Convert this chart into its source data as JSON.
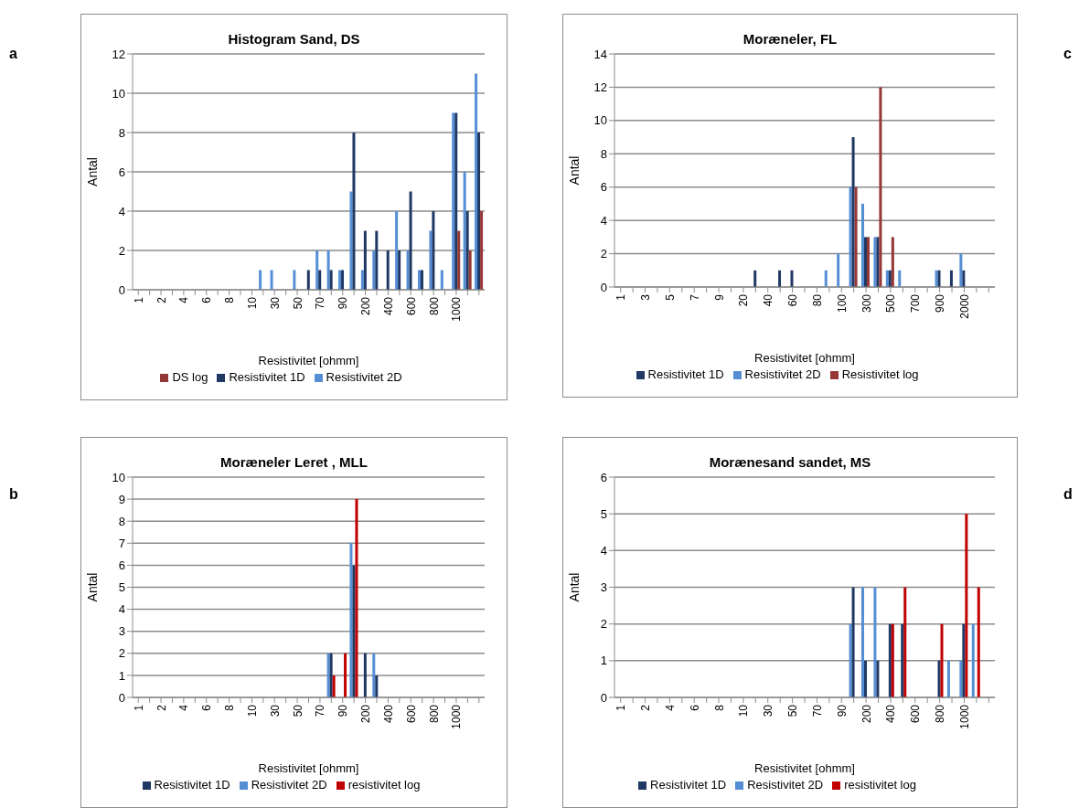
{
  "chart_data": [
    {
      "type": "bar",
      "title": "Histogram Sand,  DS",
      "xlabel": "Resistivitet [ohmm]",
      "ylabel": "Antal",
      "annotations": [
        "a"
      ],
      "grid": "y",
      "legend": "bottom",
      "ylim": [
        0,
        12
      ],
      "yticks": [
        0,
        2,
        4,
        6,
        8,
        10,
        12
      ],
      "categories": [
        "1",
        null,
        "2",
        null,
        "4",
        null,
        "6",
        null,
        "8",
        null,
        "10",
        null,
        "30",
        null,
        "50",
        null,
        "70",
        null,
        "90",
        null,
        "200",
        null,
        "400",
        null,
        "600",
        null,
        "800",
        null,
        "1000",
        null,
        null
      ],
      "series": [
        {
          "name": "Resistivitet 2D",
          "color": "#558ed5",
          "values": [
            0,
            0,
            0,
            0,
            0,
            0,
            0,
            0,
            0,
            0,
            0,
            1,
            1,
            0,
            1,
            0,
            2,
            2,
            1,
            5,
            1,
            2,
            0,
            4,
            2,
            1,
            3,
            1,
            9,
            6,
            11
          ]
        },
        {
          "name": "Resistivitet 1D",
          "color": "#1f3864",
          "values": [
            0,
            0,
            0,
            0,
            0,
            0,
            0,
            0,
            0,
            0,
            0,
            0,
            0,
            0,
            0,
            1,
            1,
            1,
            1,
            8,
            3,
            3,
            2,
            2,
            5,
            1,
            4,
            0,
            9,
            4,
            8
          ]
        },
        {
          "name": "DS log",
          "color": "#953735",
          "values": [
            0,
            0,
            0,
            0,
            0,
            0,
            0,
            0,
            0,
            0,
            0,
            0,
            0,
            0,
            0,
            0,
            0,
            0,
            0,
            0,
            0,
            0,
            0,
            0,
            0,
            0,
            0,
            0,
            3,
            2,
            4
          ]
        }
      ]
    },
    {
      "type": "bar",
      "title": "Moræneler, FL",
      "xlabel": "Resistivitet [ohmm]",
      "ylabel": "Antal",
      "annotations": [
        "c"
      ],
      "grid": "y",
      "legend": "bottom",
      "ylim": [
        0,
        14
      ],
      "yticks": [
        0,
        2,
        4,
        6,
        8,
        10,
        12,
        14
      ],
      "categories": [
        "1",
        null,
        "3",
        null,
        "5",
        null,
        "7",
        null,
        "9",
        null,
        "20",
        null,
        "40",
        null,
        "60",
        null,
        "80",
        null,
        "100",
        null,
        "300",
        null,
        "500",
        null,
        "700",
        null,
        "900",
        null,
        "2000",
        null,
        null
      ],
      "series": [
        {
          "name": "Resistivitet 2D",
          "color": "#558ed5",
          "values": [
            0,
            0,
            0,
            0,
            0,
            0,
            0,
            0,
            0,
            0,
            0,
            0,
            0,
            0,
            0,
            0,
            0,
            1,
            2,
            6,
            5,
            3,
            1,
            1,
            0,
            0,
            1,
            0,
            2,
            0,
            0
          ]
        },
        {
          "name": "Resistivitet 1D",
          "color": "#1f3864",
          "values": [
            0,
            0,
            0,
            0,
            0,
            0,
            0,
            0,
            0,
            0,
            0,
            1,
            0,
            1,
            1,
            0,
            0,
            0,
            0,
            9,
            3,
            3,
            1,
            0,
            0,
            0,
            1,
            1,
            1,
            0,
            0
          ]
        },
        {
          "name": "Resistivitet log",
          "color": "#953735",
          "values": [
            0,
            0,
            0,
            0,
            0,
            0,
            0,
            0,
            0,
            0,
            0,
            0,
            0,
            0,
            0,
            0,
            0,
            0,
            0,
            6,
            3,
            12,
            3,
            0,
            0,
            0,
            0,
            0,
            0,
            0,
            0
          ]
        }
      ]
    },
    {
      "type": "bar",
      "title": "Moræneler Leret , MLL",
      "xlabel": "Resistivitet [ohmm]",
      "ylabel": "Antal",
      "annotations": [
        "b"
      ],
      "grid": "y",
      "legend": "bottom",
      "ylim": [
        0,
        10
      ],
      "yticks": [
        0,
        1,
        2,
        3,
        4,
        5,
        6,
        7,
        8,
        9,
        10
      ],
      "categories": [
        "1",
        null,
        "2",
        null,
        "4",
        null,
        "6",
        null,
        "8",
        null,
        "10",
        null,
        "30",
        null,
        "50",
        null,
        "70",
        null,
        "90",
        null,
        "200",
        null,
        "400",
        null,
        "600",
        null,
        "800",
        null,
        "1000",
        null,
        null
      ],
      "series": [
        {
          "name": "Resistivitet 2D",
          "color": "#558ed5",
          "values": [
            0,
            0,
            0,
            0,
            0,
            0,
            0,
            0,
            0,
            0,
            0,
            0,
            0,
            0,
            0,
            0,
            0,
            2,
            0,
            7,
            0,
            2,
            0,
            0,
            0,
            0,
            0,
            0,
            0,
            0,
            0
          ]
        },
        {
          "name": "Resistivitet 1D",
          "color": "#1f3864",
          "values": [
            0,
            0,
            0,
            0,
            0,
            0,
            0,
            0,
            0,
            0,
            0,
            0,
            0,
            0,
            0,
            0,
            0,
            2,
            0,
            6,
            2,
            1,
            0,
            0,
            0,
            0,
            0,
            0,
            0,
            0,
            0
          ]
        },
        {
          "name": "resistivitet log",
          "color": "#c00000",
          "values": [
            0,
            0,
            0,
            0,
            0,
            0,
            0,
            0,
            0,
            0,
            0,
            0,
            0,
            0,
            0,
            0,
            0,
            1,
            2,
            9,
            0,
            0,
            0,
            0,
            0,
            0,
            0,
            0,
            0,
            0,
            0
          ]
        }
      ]
    },
    {
      "type": "bar",
      "title": "Morænesand sandet, MS",
      "xlabel": "Resistivitet [ohmm]",
      "ylabel": "Antal",
      "annotations": [
        "d"
      ],
      "grid": "y",
      "legend": "bottom",
      "ylim": [
        0,
        6
      ],
      "yticks": [
        0,
        1,
        2,
        3,
        4,
        5,
        6
      ],
      "categories": [
        "1",
        null,
        "2",
        null,
        "4",
        null,
        "6",
        null,
        "8",
        null,
        "10",
        null,
        "30",
        null,
        "50",
        null,
        "70",
        null,
        "90",
        null,
        "200",
        null,
        "400",
        null,
        "600",
        null,
        "800",
        null,
        "1000",
        null,
        null
      ],
      "series": [
        {
          "name": "Resistivitet 2D",
          "color": "#558ed5",
          "values": [
            0,
            0,
            0,
            0,
            0,
            0,
            0,
            0,
            0,
            0,
            0,
            0,
            0,
            0,
            0,
            0,
            0,
            0,
            0,
            2,
            3,
            3,
            0,
            0,
            0,
            0,
            0,
            1,
            1,
            2,
            0
          ]
        },
        {
          "name": "Resistivitet 1D",
          "color": "#1f3864",
          "values": [
            0,
            0,
            0,
            0,
            0,
            0,
            0,
            0,
            0,
            0,
            0,
            0,
            0,
            0,
            0,
            0,
            0,
            0,
            0,
            3,
            1,
            1,
            2,
            2,
            0,
            0,
            1,
            0,
            2,
            0,
            0
          ]
        },
        {
          "name": "resistivitet log",
          "color": "#c00000",
          "values": [
            0,
            0,
            0,
            0,
            0,
            0,
            0,
            0,
            0,
            0,
            0,
            0,
            0,
            0,
            0,
            0,
            0,
            0,
            0,
            0,
            0,
            0,
            2,
            3,
            0,
            0,
            2,
            0,
            5,
            3,
            0
          ]
        }
      ]
    }
  ]
}
